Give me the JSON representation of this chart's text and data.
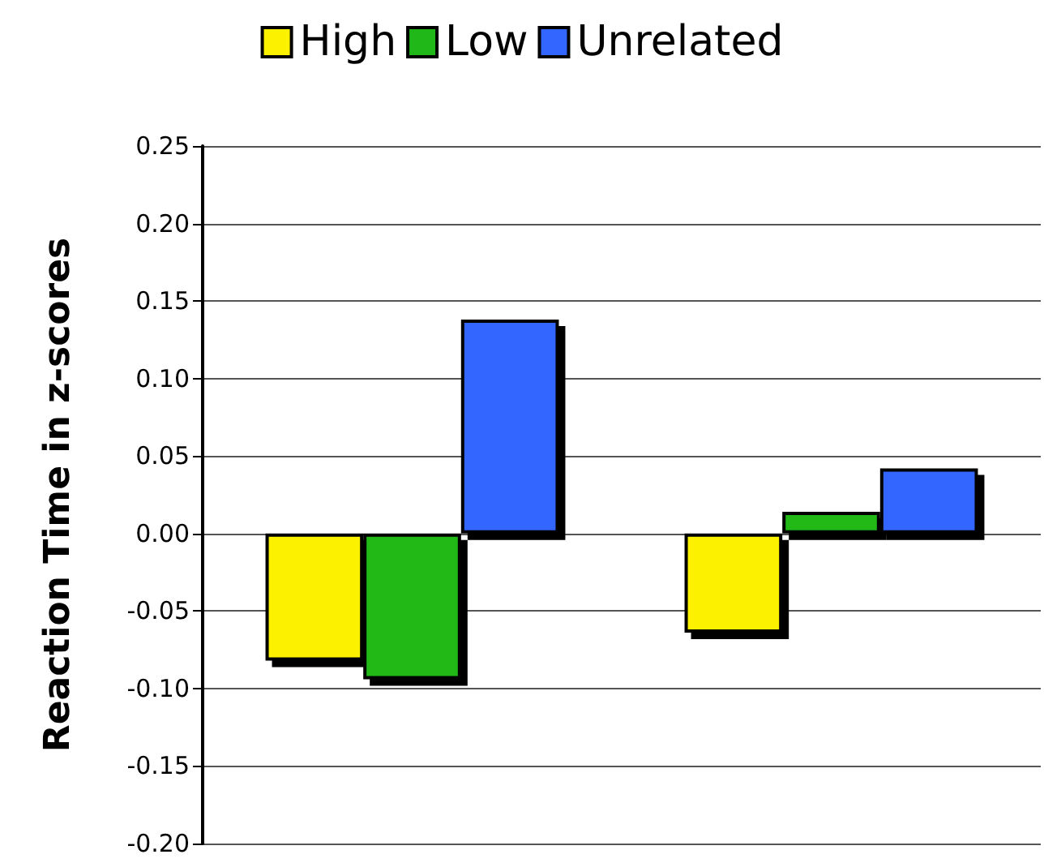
{
  "chart_data": {
    "type": "bar",
    "ylabel": "Reaction Time in z-scores",
    "categories": [
      null,
      null
    ],
    "series": [
      {
        "name": "High",
        "color": "#fcf200",
        "values": [
          -0.082,
          -0.064
        ]
      },
      {
        "name": "Low",
        "color": "#20b818",
        "values": [
          -0.094,
          0.014
        ]
      },
      {
        "name": "Unrelated",
        "color": "#3366ff",
        "values": [
          0.138,
          0.042
        ]
      }
    ],
    "ylim": [
      -0.2,
      0.25
    ],
    "yticks": [
      {
        "value": -0.2,
        "label": "-0.20"
      },
      -0.15,
      {
        "value": -0.1,
        "label": "-0.10"
      },
      -0.05,
      {
        "value": 0,
        "label": "0.00"
      },
      0.05,
      {
        "value": 0.1,
        "label": "0.10"
      },
      0.15,
      {
        "value": 0.2,
        "label": "0.20"
      },
      0.25
    ],
    "grid": "y",
    "legend": "top"
  }
}
